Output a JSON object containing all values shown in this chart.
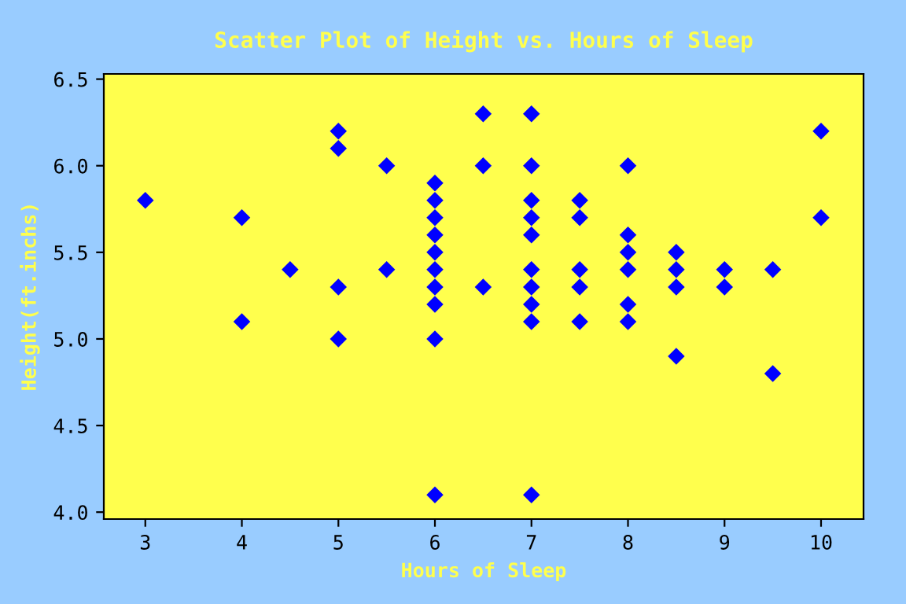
{
  "chart_data": {
    "type": "scatter",
    "title": "Scatter Plot of Height vs. Hours of Sleep",
    "xlabel": "Hours of Sleep",
    "ylabel": "Height(ft.inchs)",
    "xlim": [
      2.57,
      10.44
    ],
    "ylim": [
      3.96,
      6.53
    ],
    "xticks": [
      3,
      4,
      5,
      6,
      7,
      8,
      9,
      10
    ],
    "yticks": [
      {
        "value": 4.0,
        "label": "4.0"
      },
      {
        "value": 4.5,
        "label": "4.5"
      },
      {
        "value": 5.0,
        "label": "5.0"
      },
      {
        "value": 5.5,
        "label": "5.5"
      },
      {
        "value": 6.0,
        "label": "6.0"
      },
      {
        "value": 6.5,
        "label": "6.5"
      }
    ],
    "grid": false,
    "marker": "diamond",
    "series": [
      {
        "color": "#0000ff",
        "x": [
          3,
          4,
          4,
          4.5,
          5,
          5,
          5,
          5,
          5.5,
          5.5,
          6,
          6,
          6,
          6,
          6,
          6,
          6,
          6,
          6,
          6,
          6.5,
          6.5,
          6.5,
          7,
          7,
          7,
          7,
          7,
          7,
          7,
          7,
          7,
          7,
          7.5,
          7.5,
          7.5,
          7.5,
          7.5,
          8,
          8,
          8,
          8,
          8,
          8,
          8.5,
          8.5,
          8.5,
          8.5,
          9,
          9,
          9.5,
          9.5,
          10,
          10
        ],
        "values": [
          5.8,
          5.7,
          5.1,
          5.4,
          6.2,
          6.1,
          5.3,
          5.0,
          6.0,
          5.4,
          5.9,
          5.8,
          5.7,
          5.6,
          5.5,
          5.4,
          5.3,
          5.2,
          5.0,
          4.1,
          6.3,
          6.0,
          5.3,
          6.3,
          6.0,
          5.8,
          5.7,
          5.6,
          5.4,
          5.3,
          5.2,
          5.1,
          4.1,
          5.8,
          5.7,
          5.4,
          5.3,
          5.1,
          6.0,
          5.6,
          5.5,
          5.4,
          5.2,
          5.1,
          5.5,
          5.4,
          5.3,
          4.9,
          5.4,
          5.3,
          5.4,
          4.8,
          6.2,
          5.7
        ]
      }
    ]
  }
}
